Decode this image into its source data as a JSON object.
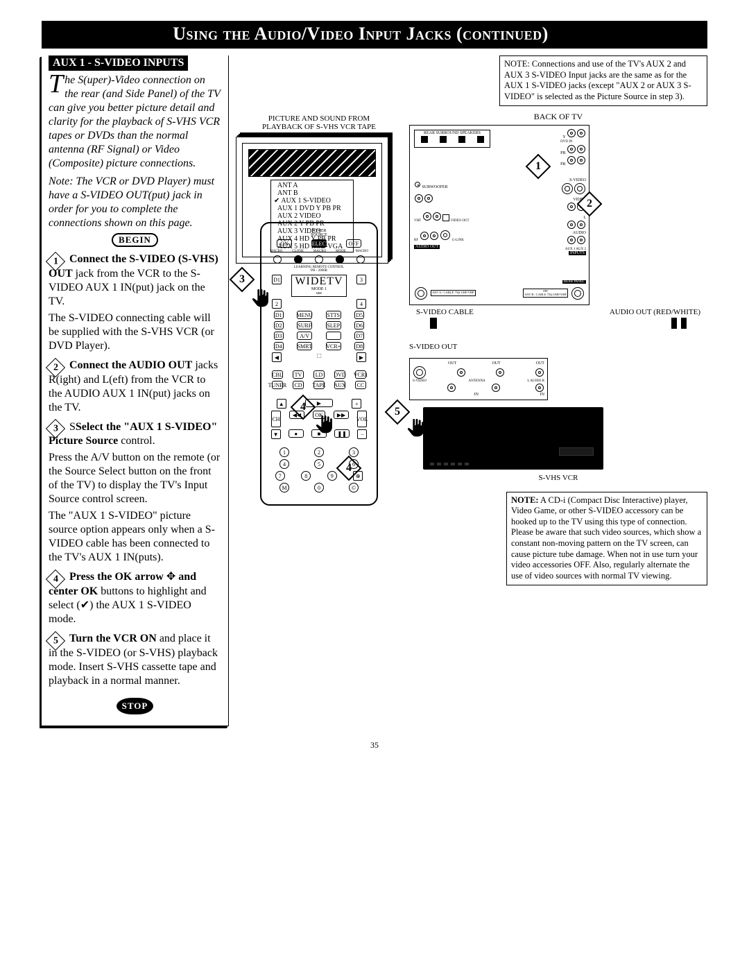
{
  "title_bar": "Using the Audio/Video Input Jacks (continued)",
  "subhead": "AUX 1 - S-VIDEO INPUTS",
  "dropcap": "T",
  "intro_rest": "he S(uper)-Video connection on the rear (and Side Panel) of the TV can give you better picture detail and clarity for the playback of S-VHS VCR tapes or DVDs than the normal antenna (RF Signal) or Video (Composite) picture connections.",
  "intro_note": "Note: The VCR or DVD Player) must have a S-VIDEO OUT(put) jack in order for you to complete the connections shown on this page.",
  "begin_label": "BEGIN",
  "steps": [
    {
      "num": "1",
      "bold": "Connect the S-VIDEO (S-VHS) OUT",
      "rest": " jack from the VCR to the S-VIDEO AUX 1 IN(put) jack on the TV.",
      "tail": "The S-VIDEO connecting cable will be supplied with the S-VHS VCR (or DVD Player)."
    },
    {
      "num": "2",
      "bold": "Connect the AUDIO OUT",
      "rest": " jacks R(ight) and L(eft) from the VCR to the AUDIO AUX 1 IN(put) jacks on the TV.",
      "tail": ""
    },
    {
      "num": "3",
      "bold": "Select the \"AUX 1 S-VIDEO\" Picture Source",
      "rest": " control.",
      "tail": "Press the A/V button on the remote (or the Source Select button on the front of the TV) to display the TV's Input Source control screen.\nThe \"AUX 1 S-VIDEO\" picture source option appears only when a S-VIDEO cable has been connected to the TV's AUX 1 IN(puts).",
      "prefix": "S"
    },
    {
      "num": "4",
      "bold": "Press the OK arrow",
      "rest": "   ✥   and center OK",
      "bold2": " buttons to highlight and select (✔) the AUX 1 S-VIDEO mode.",
      "tail": ""
    },
    {
      "num": "5",
      "bold": "Turn the VCR ON",
      "rest": " and place it in the S-VIDEO (or S-VHS) playback mode. Insert S-VHS cassette tape and playback in a normal manner.",
      "tail": ""
    }
  ],
  "stop_label": "STOP",
  "page_num": "35",
  "note_top": "NOTE: Connections and use of the TV's AUX 2 and AUX 3 S-VIDEO Input jacks are the same as for the AUX 1 S-VIDEO jacks (except \"AUX 2 or AUX 3 S-VIDEO\" is selected as the Picture Source in step 3).",
  "note_bottom": "NOTE: A CD-i (Compact Disc Interactive) player, Video Game, or other S-VIDEO accessory can be hooked up to the TV using this type of connection. Please be aware that such video sources, which show a constant non-moving pattern on the TV screen, can cause picture tube damage. When not in use turn your video accessories OFF. Also, regularly alternate the use of video sources with normal TV viewing.",
  "back_of_tv": "BACK OF TV",
  "vcr_caption_top": "PICTURE AND SOUND FROM",
  "vcr_caption_bottom": "PLAYBACK OF S-VHS VCR TAPE",
  "menu_items": [
    "ANT A",
    "ANT B",
    "AUX 1  S-VIDEO",
    "AUX 1  DVD Y PB PR",
    "AUX 2  VIDEO",
    "AUX 2  Y PB PR",
    "AUX 3  VIDEO",
    "AUX 4  HD Y PB PR",
    "AUX 5  HD RGB-VGA"
  ],
  "menu_checked_index": 2,
  "svideo_cable": "S-VIDEO CABLE",
  "audio_out_rw": "AUDIO OUT (RED/WHITE)",
  "svideo_out": "S-VIDEO OUT",
  "svhs_vcr": "S-VHS VCR",
  "tv_labels": {
    "rear_surround": "REAR SURROUND SPEAKERS",
    "rear_panel": "REAR PANEL",
    "subwoofer": "SUBWOOFER",
    "video_out": "VIDEO OUT",
    "audio_out": "AUDIO OUT",
    "glink": "G-LINK",
    "dvd_in": "DVD IN",
    "svideo": "S-VIDEO",
    "video": "VIDEO",
    "audio": "AUDIO",
    "aux12": "AUX 1    AUX 2",
    "inputs": "INPUTS",
    "pip": "PIP",
    "antb": "ANT B / CABLE 75Ω  UHF/VHF",
    "anta": "ANT A / CABLE 75Ω  UHF/VHF",
    "y": "Y",
    "pb": "PB",
    "pr": "PR",
    "vhf": "VHF",
    "rf": "RF"
  },
  "remote": {
    "power": "POWER",
    "source": "SOURCE",
    "on": "ON",
    "off": "OFF",
    "select": "SELECT",
    "macro": "MACRO",
    "clone": "CLONE",
    "mode": "MODE",
    "learning": "LEARNING REMOTE CONTROL",
    "model": "PH - 2000R",
    "widetv": "WIDETV",
    "mode1": "MODE 1",
    "use": "use",
    "menu": "MENU",
    "stts": "STTS",
    "surf": "SURF",
    "slep": "SLEP",
    "av": "A/V",
    "smrt": "SMRT",
    "vcr": "VCR+",
    "d1": "D1",
    "d2": "D2",
    "d3": "D3",
    "d4": "D4",
    "d5": "D5",
    "d6": "D6",
    "d7": "D7",
    "d8": "D8",
    "cbl": "CBL",
    "tv": "TV",
    "ld": "LD",
    "dvd": "DVD",
    "vcr1": "VCR1",
    "tuner": "TUNER",
    "cd": "CD",
    "tape": "TAPE",
    "aux": "AUX",
    "cc": "CC",
    "ch": "CH",
    "vol": "VOL",
    "ok": "OK",
    "nums": [
      "1",
      "2",
      "3",
      "4",
      "5",
      "6",
      "7",
      "8",
      "9",
      "M",
      "0",
      "©"
    ],
    "arrows": {
      "left": "◀◀",
      "play": "▶",
      "right": "▶▶",
      "rec": "●",
      "stop": "■",
      "pause": "❚❚",
      "plus": "+"
    }
  },
  "av_panel": {
    "out": "OUT",
    "in": "IN",
    "svideo": "S-VIDEO",
    "antenna": "ANTENNA",
    "l": "L",
    "r": "R",
    "audio": "AUDIO"
  }
}
